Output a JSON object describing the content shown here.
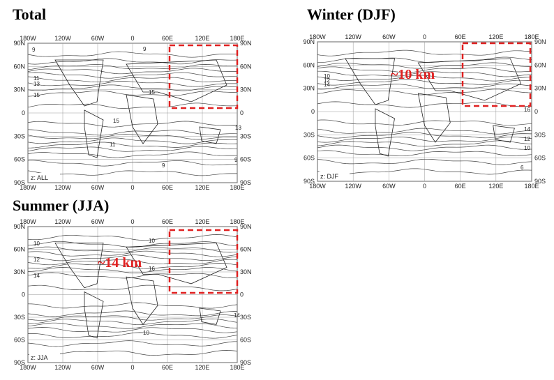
{
  "figure": {
    "lon_labels": [
      "180W",
      "120W",
      "60W",
      "0",
      "60E",
      "120E",
      "180E"
    ],
    "lat_labels": [
      "90N",
      "60N",
      "30N",
      "0",
      "30S",
      "60S",
      "90S"
    ],
    "panels": [
      {
        "title": "Total",
        "box_label": "z: ALL",
        "contour_labels": [
          "9",
          "9",
          "11",
          "13",
          "15",
          "15",
          "15",
          "13",
          "11",
          "9",
          "9"
        ]
      },
      {
        "title": "Winter (DJF)",
        "box_label": "z: DJF",
        "annotation": "~10 km",
        "contour_labels": [
          "10",
          "12",
          "14",
          "16",
          "14",
          "12",
          "10",
          "6"
        ]
      },
      {
        "title": "Summer (JJA)",
        "box_label": "z: JJA",
        "annotation": "~14 km",
        "contour_labels": [
          "10",
          "12",
          "14",
          "16",
          "10",
          "14",
          "10"
        ]
      }
    ]
  }
}
